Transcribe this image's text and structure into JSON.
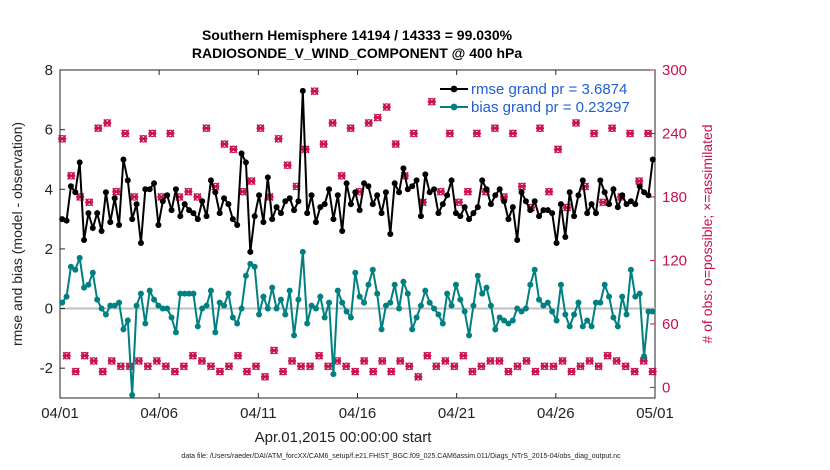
{
  "chart_data": {
    "type": "line",
    "title": "Southern Hemisphere 14194 / 14333 = 99.030%",
    "subtitle": "RADIOSONDE_V_WIND_COMPONENT @ 400 hPa",
    "xlabel": "Apr.01,2015 00:00:00 start",
    "ylabel": "rmse and bias (model - observation)",
    "ylabel_right": "# of obs: o=possible; ×=assimilated",
    "x_ticks": [
      "04/01",
      "04/06",
      "04/11",
      "04/16",
      "04/21",
      "04/26",
      "05/01"
    ],
    "y_ticks": [
      "-2",
      "0",
      "2",
      "4",
      "6",
      "8"
    ],
    "y_ticks_right": [
      "0",
      "60",
      "120",
      "180",
      "240",
      "300"
    ],
    "xlim_days": [
      0,
      30
    ],
    "ylim": [
      -3,
      8
    ],
    "ylim_right": [
      -10,
      300
    ],
    "grid": false,
    "legend_position": "top-right",
    "colors": {
      "rmse": "#000000",
      "bias": "#008080",
      "obs": "#c8104e",
      "legend_text": "#1f5fd6"
    },
    "series": [
      {
        "name": "rmse grand pr = 3.6874",
        "axis": "left",
        "marker": "filled-circle",
        "values": [
          3.0,
          2.95,
          4.1,
          3.9,
          4.9,
          2.3,
          3.2,
          2.7,
          3.2,
          2.6,
          3.9,
          2.9,
          3.7,
          2.8,
          5.0,
          4.3,
          3.0,
          3.5,
          2.2,
          4.0,
          4.0,
          4.2,
          2.8,
          3.6,
          3.8,
          3.3,
          4.0,
          3.1,
          3.5,
          3.3,
          3.2,
          3.0,
          3.6,
          3.1,
          4.3,
          3.9,
          3.2,
          3.7,
          3.5,
          3.0,
          2.8,
          5.2,
          4.9,
          1.9,
          3.1,
          3.8,
          2.9,
          4.4,
          3.0,
          3.4,
          3.2,
          3.6,
          3.7,
          3.3,
          3.6,
          7.3,
          3.2,
          3.8,
          2.9,
          3.4,
          3.5,
          4.0,
          3.0,
          3.8,
          2.6,
          4.2,
          3.5,
          3.9,
          3.3,
          4.2,
          4.1,
          3.5,
          3.8,
          3.2,
          3.9,
          2.5,
          4.2,
          3.9,
          4.7,
          4.0,
          4.1,
          4.3,
          3.1,
          4.5,
          3.9,
          4.0,
          3.2,
          3.5,
          3.8,
          4.3,
          3.2,
          3.1,
          3.4,
          3.0,
          3.2,
          3.4,
          4.3,
          4.0,
          3.5,
          3.8,
          4.0,
          3.6,
          3.0,
          3.4,
          2.3,
          3.9,
          3.6,
          3.3,
          3.6,
          3.1,
          3.3,
          3.3,
          3.2,
          2.2,
          3.5,
          2.4,
          3.9,
          3.1,
          3.8,
          4.3,
          3.2,
          3.5,
          3.2,
          4.3,
          3.9,
          3.5,
          4.0,
          3.4,
          3.8,
          3.5,
          3.6,
          3.5,
          4.1,
          3.9,
          3.8,
          5.0
        ]
      },
      {
        "name": "bias grand pr = 0.23297",
        "axis": "left",
        "marker": "filled-circle",
        "values": [
          0.2,
          0.4,
          1.4,
          1.3,
          1.7,
          0.7,
          0.8,
          1.2,
          0.3,
          0.0,
          -0.2,
          0.1,
          0.1,
          0.2,
          -0.7,
          -0.4,
          -2.9,
          0.1,
          0.5,
          -0.5,
          0.6,
          0.3,
          0.1,
          0.0,
          0.0,
          -0.3,
          -0.8,
          0.5,
          0.5,
          0.5,
          0.5,
          -0.6,
          0.0,
          0.1,
          0.6,
          -0.8,
          0.2,
          0.1,
          0.5,
          -0.3,
          -0.5,
          0.0,
          1.1,
          1.5,
          1.4,
          -0.2,
          0.4,
          0.0,
          0.7,
          0.0,
          0.3,
          -0.2,
          0.6,
          -0.9,
          0.3,
          1.9,
          -0.5,
          0.1,
          0.0,
          0.4,
          -0.3,
          0.2,
          -2.2,
          0.6,
          0.2,
          -0.1,
          -0.3,
          1.2,
          0.4,
          0.2,
          0.8,
          1.3,
          0.5,
          -0.7,
          0.1,
          0.2,
          0.8,
          0.0,
          0.9,
          0.5,
          -0.7,
          -0.3,
          0.1,
          0.6,
          0.2,
          0.0,
          -0.2,
          -0.5,
          0.5,
          0.1,
          0.8,
          0.3,
          -0.1,
          -0.9,
          0.1,
          1.1,
          0.5,
          0.7,
          0.1,
          -0.7,
          -0.3,
          -0.4,
          -0.5,
          -0.4,
          0.0,
          -0.1,
          0.0,
          0.8,
          1.3,
          0.3,
          0.1,
          0.2,
          -0.1,
          -0.4,
          0.8,
          -0.2,
          -0.6,
          -0.2,
          0.2,
          -0.6,
          -0.4,
          -0.6,
          0.2,
          0.2,
          0.8,
          0.4,
          -0.3,
          -0.6,
          0.4,
          -0.2,
          1.3,
          0.4,
          0.5,
          -1.6,
          -0.1,
          -0.1
        ]
      },
      {
        "name": "obs possible (o)",
        "axis": "right",
        "marker": "open-circle",
        "values": [
          235,
          30,
          200,
          15,
          180,
          30,
          175,
          25,
          245,
          15,
          250,
          25,
          185,
          20,
          240,
          20,
          180,
          25,
          235,
          20,
          240,
          25,
          180,
          20,
          240,
          15,
          180,
          20,
          185,
          30,
          180,
          25,
          245,
          20,
          190,
          15,
          230,
          20,
          225,
          30,
          185,
          15,
          195,
          20,
          245,
          10,
          180,
          35,
          235,
          15,
          210,
          25,
          190,
          20,
          225,
          20,
          280,
          30,
          230,
          20,
          250,
          25,
          200,
          20,
          245,
          15,
          185,
          25,
          250,
          15,
          255,
          25,
          265,
          15,
          230,
          25,
          200,
          20,
          240,
          10,
          175,
          30,
          270,
          20,
          185,
          25,
          240,
          20,
          175,
          30,
          185,
          15,
          240,
          20,
          185,
          25,
          245,
          25,
          180,
          15,
          240,
          20,
          190,
          25,
          170,
          15,
          245,
          20,
          185,
          20,
          225,
          25,
          170,
          15,
          250,
          20,
          190,
          25,
          240,
          20,
          175,
          30,
          245,
          25,
          180,
          20,
          240,
          15,
          195,
          25,
          240,
          15
        ]
      }
    ],
    "obs_points_note": "o and × symbols nearly coincide; counts alternate between high (~170-280) and low (~10-35) per assimilation cycle",
    "footnote": "data file: /Users/raeder/DAI/ATM_forcXX/CAM6_setup/f.e21.FHIST_BGC.f09_025.CAM6assim.011/Diags_NTrS_2015-04/obs_diag_output.nc"
  }
}
